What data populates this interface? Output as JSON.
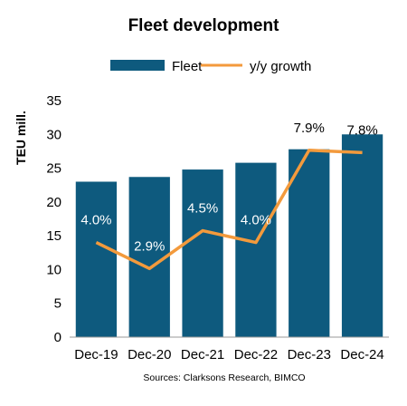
{
  "chart_data": {
    "type": "bar",
    "title": "Fleet development",
    "xlabel": "",
    "ylabel": "TEU mill.",
    "categories": [
      "Dec-19",
      "Dec-20",
      "Dec-21",
      "Dec-22",
      "Dec-23",
      "Dec-24"
    ],
    "ylim": [
      0,
      35
    ],
    "yticks": [
      0,
      5,
      10,
      15,
      20,
      25,
      30,
      35
    ],
    "grid": false,
    "legend_position": "top",
    "series": [
      {
        "name": "Fleet",
        "type": "bar",
        "color": "#0e5a7e",
        "values": [
          23.0,
          23.7,
          24.8,
          25.8,
          27.8,
          30.0
        ]
      },
      {
        "name": "y/y growth",
        "type": "line",
        "color": "#f39a3c",
        "values": [
          4.0,
          2.9,
          4.5,
          4.0,
          7.9,
          7.8
        ],
        "labels": [
          "4.0%",
          "2.9%",
          "4.5%",
          "4.0%",
          "7.9%",
          "7.8%"
        ]
      }
    ],
    "source": "Sources: Clarksons Research, BIMCO"
  }
}
